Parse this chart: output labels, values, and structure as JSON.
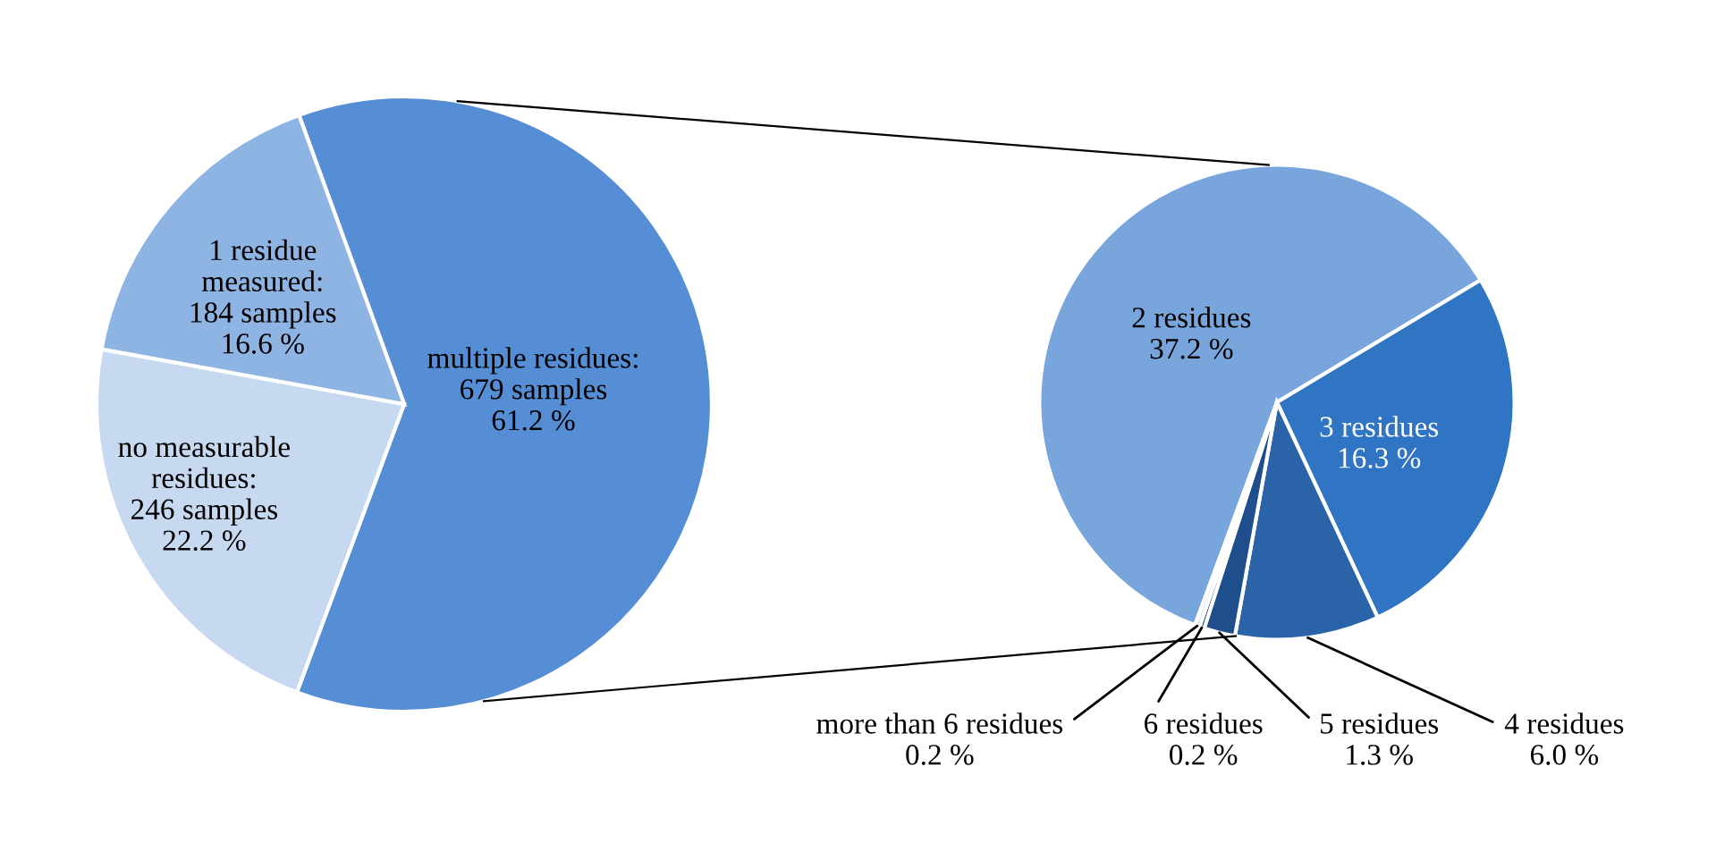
{
  "chart_data": [
    {
      "type": "pie",
      "categories": [
        "multiple residues",
        "no measurable residues",
        "1 residue measured"
      ],
      "values": [
        679,
        246,
        184
      ],
      "value_labels": [
        ":\n679 samples\n61.2 %",
        ":\n246 samples\n22.2 %",
        ":\n184 samples\n16.6 %"
      ],
      "colors": [
        "#558ed5",
        "#c6d9f1",
        "#8eb4e3"
      ]
    },
    {
      "type": "pie",
      "categories": [
        "2 residues",
        "3 residues",
        "4 residues",
        "5 residues",
        "6 residues",
        "more than 6 residues"
      ],
      "values": [
        37.2,
        16.3,
        6.0,
        1.3,
        0.2,
        0.2
      ],
      "value_labels": [
        "37.2 %",
        "16.3 %",
        "6.0 %",
        "1.3 %",
        "0.2 %",
        "0.2 %"
      ],
      "colors": [
        "#77a5dc",
        "#3074c4",
        "#2b63a8",
        "#1f4e8c",
        "#1a3f70",
        "#dbe5f1"
      ]
    }
  ]
}
